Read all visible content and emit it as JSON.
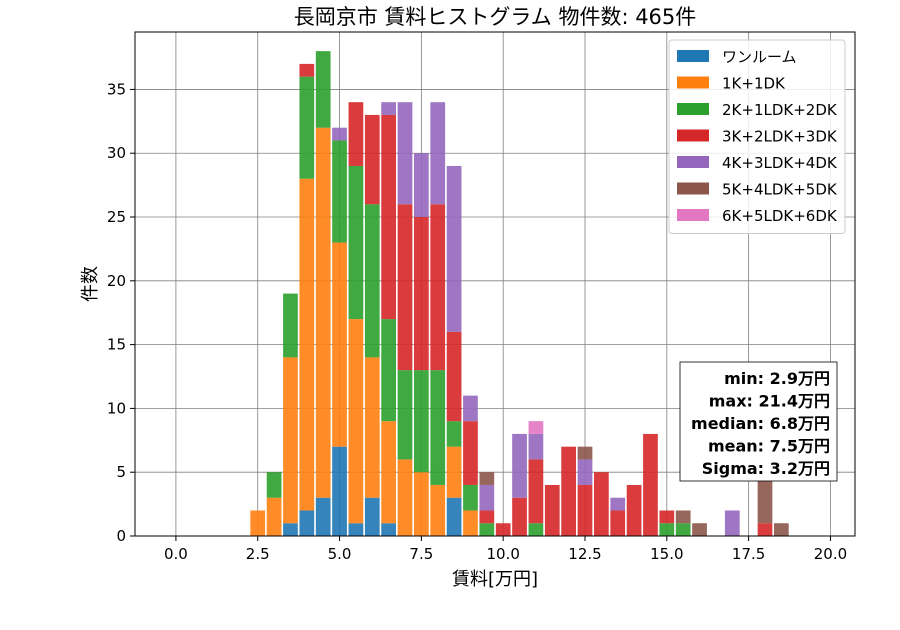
{
  "chart_data": {
    "type": "bar",
    "stacked": true,
    "title": "長岡京市 賃料ヒストグラム 物件数: 465件",
    "xlabel": "賃料[万円]",
    "ylabel": "件数",
    "xlim": [
      -1.25,
      20.75
    ],
    "ylim": [
      0,
      39.5
    ],
    "xticks": [
      0.0,
      2.5,
      5.0,
      7.5,
      10.0,
      12.5,
      15.0,
      17.5,
      20.0
    ],
    "xtick_labels": [
      "0.0",
      "2.5",
      "5.0",
      "7.5",
      "10.0",
      "12.5",
      "15.0",
      "17.5",
      "20.0"
    ],
    "yticks": [
      0,
      5,
      10,
      15,
      20,
      25,
      30,
      35
    ],
    "ytick_labels": [
      "0",
      "5",
      "10",
      "15",
      "20",
      "25",
      "30",
      "35"
    ],
    "grid": true,
    "legend_position": "top-right",
    "bin_centers": [
      2.5,
      3.0,
      3.5,
      4.0,
      4.5,
      5.0,
      5.5,
      6.0,
      6.5,
      7.0,
      7.5,
      8.0,
      8.5,
      9.0,
      9.5,
      10.0,
      10.5,
      11.0,
      11.5,
      12.0,
      12.5,
      13.0,
      13.5,
      14.0,
      14.5,
      15.0,
      15.5,
      16.0,
      16.5,
      17.0,
      17.5,
      18.0,
      18.5
    ],
    "series": [
      {
        "name": "ワンルーム",
        "color": "#1f77b4",
        "values": [
          0,
          0,
          1,
          2,
          3,
          7,
          1,
          3,
          1,
          0,
          0,
          0,
          3,
          0,
          0,
          0,
          0,
          0,
          0,
          0,
          0,
          0,
          0,
          0,
          0,
          0,
          0,
          0,
          0,
          0,
          0,
          0,
          0
        ]
      },
      {
        "name": "1K+1DK",
        "color": "#ff7f0e",
        "values": [
          2,
          3,
          13,
          26,
          29,
          16,
          16,
          11,
          8,
          6,
          5,
          4,
          4,
          2,
          0,
          0,
          0,
          0,
          0,
          0,
          0,
          0,
          0,
          0,
          0,
          0,
          0,
          0,
          0,
          0,
          0,
          0,
          0
        ]
      },
      {
        "name": "2K+1LDK+2DK",
        "color": "#2ca02c",
        "values": [
          0,
          2,
          5,
          8,
          6,
          8,
          12,
          12,
          8,
          7,
          8,
          9,
          2,
          2,
          1,
          0,
          0,
          1,
          0,
          0,
          0,
          0,
          0,
          0,
          0,
          1,
          1,
          0,
          0,
          0,
          0,
          0,
          0
        ]
      },
      {
        "name": "3K+2LDK+3DK",
        "color": "#d62728",
        "values": [
          0,
          0,
          0,
          1,
          0,
          0,
          5,
          7,
          16,
          13,
          12,
          13,
          7,
          5,
          1,
          1,
          3,
          5,
          4,
          7,
          4,
          5,
          2,
          4,
          8,
          1,
          0,
          0,
          0,
          0,
          0,
          1,
          0
        ]
      },
      {
        "name": "4K+3LDK+4DK",
        "color": "#9467bd",
        "values": [
          0,
          0,
          0,
          0,
          0,
          1,
          0,
          0,
          1,
          8,
          5,
          8,
          13,
          2,
          2,
          0,
          5,
          2,
          0,
          0,
          2,
          0,
          1,
          0,
          0,
          0,
          0,
          0,
          0,
          2,
          0,
          0,
          0
        ]
      },
      {
        "name": "5K+4LDK+5DK",
        "color": "#8c564b",
        "values": [
          0,
          0,
          0,
          0,
          0,
          0,
          0,
          0,
          0,
          0,
          0,
          0,
          0,
          0,
          1,
          0,
          0,
          0,
          0,
          0,
          1,
          0,
          0,
          0,
          0,
          0,
          1,
          1,
          0,
          0,
          0,
          4,
          1
        ]
      },
      {
        "name": "6K+5LDK+6DK",
        "color": "#e377c2",
        "values": [
          0,
          0,
          0,
          0,
          0,
          0,
          0,
          0,
          0,
          0,
          0,
          0,
          0,
          0,
          0,
          0,
          0,
          1,
          0,
          0,
          0,
          0,
          0,
          0,
          0,
          0,
          0,
          0,
          0,
          0,
          0,
          0,
          0
        ]
      }
    ],
    "annotations": [
      "min: 2.9万円",
      "max: 21.4万円",
      "median: 6.8万円",
      "mean: 7.5万円",
      "Sigma: 3.2万円"
    ]
  },
  "colors": {
    "background": "#ffffff",
    "grid": "#808080",
    "axis": "#000000"
  }
}
